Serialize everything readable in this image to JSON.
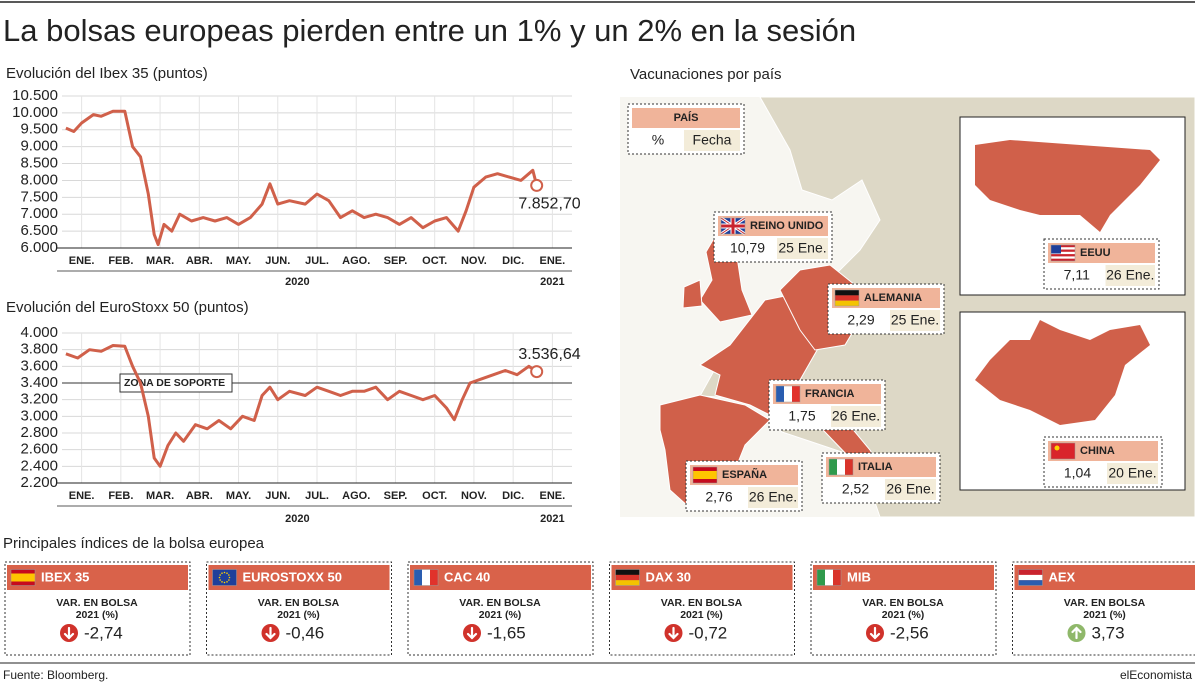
{
  "title": "La bolsas europeas pierden entre un 1% y un 2% en la sesión",
  "chart_data": [
    {
      "type": "line",
      "title": "Evolución del Ibex 35 (puntos)",
      "xlim": [
        0,
        13
      ],
      "xticks": [
        {
          "value": 0.5,
          "label": "ENE."
        },
        {
          "value": 1.5,
          "label": "FEB."
        },
        {
          "value": 2.5,
          "label": "MAR."
        },
        {
          "value": 3.5,
          "label": "ABR."
        },
        {
          "value": 4.5,
          "label": "MAY."
        },
        {
          "value": 5.5,
          "label": "JUN."
        },
        {
          "value": 6.5,
          "label": "JUL."
        },
        {
          "value": 7.5,
          "label": "AGO."
        },
        {
          "value": 8.5,
          "label": "SEP."
        },
        {
          "value": 9.5,
          "label": "OCT."
        },
        {
          "value": 10.5,
          "label": "NOV."
        },
        {
          "value": 11.5,
          "label": "DIC."
        },
        {
          "value": 12.5,
          "label": "ENE."
        }
      ],
      "x_groups": [
        {
          "value": 6,
          "label": "2020"
        },
        {
          "value": 12.5,
          "label": "2021"
        }
      ],
      "ylim": [
        6000,
        10500
      ],
      "yticks": [
        {
          "value": 6000,
          "label": "6.000"
        },
        {
          "value": 6500,
          "label": "6.500"
        },
        {
          "value": 7000,
          "label": "7.000"
        },
        {
          "value": 7500,
          "label": "7.500"
        },
        {
          "value": 8000,
          "label": "8.000"
        },
        {
          "value": 8500,
          "label": "8.500"
        },
        {
          "value": 9000,
          "label": "9.000"
        },
        {
          "value": 9500,
          "label": "9.500"
        },
        {
          "value": 10000,
          "label": "10.000"
        },
        {
          "value": 10500,
          "label": "10.500"
        }
      ],
      "grid": true,
      "series": [
        {
          "color": "#d0604a",
          "x": [
            0.1,
            0.3,
            0.5,
            0.8,
            1.0,
            1.3,
            1.6,
            1.8,
            2.0,
            2.2,
            2.35,
            2.45,
            2.6,
            2.8,
            3.0,
            3.3,
            3.6,
            3.9,
            4.2,
            4.5,
            4.8,
            5.1,
            5.3,
            5.5,
            5.8,
            6.2,
            6.5,
            6.8,
            7.1,
            7.4,
            7.7,
            8.0,
            8.3,
            8.6,
            8.9,
            9.2,
            9.5,
            9.8,
            10.1,
            10.3,
            10.5,
            10.8,
            11.1,
            11.4,
            11.7,
            12.0,
            12.1
          ],
          "values": [
            9550,
            9450,
            9700,
            9950,
            9900,
            10050,
            10050,
            9000,
            8700,
            7600,
            6400,
            6100,
            6700,
            6500,
            7000,
            6800,
            6900,
            6800,
            6900,
            6700,
            6900,
            7300,
            7900,
            7300,
            7400,
            7300,
            7600,
            7400,
            6900,
            7100,
            6900,
            7000,
            6900,
            6700,
            6900,
            6600,
            6800,
            6900,
            6500,
            7100,
            7800,
            8100,
            8200,
            8100,
            8000,
            8300,
            7852.7
          ],
          "value_labels": [
            null,
            null,
            null,
            null,
            null,
            null,
            null,
            null,
            null,
            null,
            null,
            null,
            null,
            null,
            null,
            null,
            null,
            null,
            null,
            null,
            null,
            null,
            null,
            null,
            null,
            null,
            null,
            null,
            null,
            null,
            null,
            null,
            null,
            null,
            null,
            null,
            null,
            null,
            null,
            null,
            null,
            null,
            null,
            null,
            null,
            null,
            "7.852,70"
          ]
        }
      ]
    },
    {
      "type": "line",
      "title": "Evolución del EuroStoxx 50 (puntos)",
      "xlim": [
        0,
        13
      ],
      "xticks": [
        {
          "value": 0.5,
          "label": "ENE."
        },
        {
          "value": 1.5,
          "label": "FEB."
        },
        {
          "value": 2.5,
          "label": "MAR."
        },
        {
          "value": 3.5,
          "label": "ABR."
        },
        {
          "value": 4.5,
          "label": "MAY."
        },
        {
          "value": 5.5,
          "label": "JUN."
        },
        {
          "value": 6.5,
          "label": "JUL."
        },
        {
          "value": 7.5,
          "label": "AGO."
        },
        {
          "value": 8.5,
          "label": "SEP."
        },
        {
          "value": 9.5,
          "label": "OCT."
        },
        {
          "value": 10.5,
          "label": "NOV."
        },
        {
          "value": 11.5,
          "label": "DIC."
        },
        {
          "value": 12.5,
          "label": "ENE."
        }
      ],
      "x_groups": [
        {
          "value": 6,
          "label": "2020"
        },
        {
          "value": 12.5,
          "label": "2021"
        }
      ],
      "ylim": [
        2200,
        4000
      ],
      "yticks": [
        {
          "value": 2200,
          "label": "2.200"
        },
        {
          "value": 2400,
          "label": "2.400"
        },
        {
          "value": 2600,
          "label": "2.600"
        },
        {
          "value": 2800,
          "label": "2.800"
        },
        {
          "value": 3000,
          "label": "3.000"
        },
        {
          "value": 3200,
          "label": "3.200"
        },
        {
          "value": 3400,
          "label": "3.400"
        },
        {
          "value": 3600,
          "label": "3.600"
        },
        {
          "value": 3800,
          "label": "3.800"
        },
        {
          "value": 4000,
          "label": "4.000"
        }
      ],
      "grid": true,
      "annotations": [
        {
          "text": "ZONA DE SOPORTE",
          "y": 3400
        }
      ],
      "series": [
        {
          "color": "#d0604a",
          "x": [
            0.1,
            0.4,
            0.7,
            1.0,
            1.3,
            1.6,
            1.8,
            2.0,
            2.2,
            2.35,
            2.5,
            2.7,
            2.9,
            3.1,
            3.4,
            3.7,
            4.0,
            4.3,
            4.6,
            4.9,
            5.1,
            5.3,
            5.5,
            5.8,
            6.2,
            6.5,
            6.8,
            7.1,
            7.4,
            7.7,
            8.0,
            8.3,
            8.6,
            8.9,
            9.2,
            9.5,
            9.8,
            10.0,
            10.2,
            10.4,
            10.7,
            11.0,
            11.3,
            11.6,
            11.9,
            12.1
          ],
          "values": [
            3750,
            3700,
            3800,
            3780,
            3850,
            3840,
            3600,
            3400,
            3000,
            2500,
            2400,
            2650,
            2800,
            2700,
            2900,
            2850,
            2950,
            2850,
            3000,
            2950,
            3250,
            3350,
            3200,
            3300,
            3250,
            3350,
            3300,
            3250,
            3300,
            3300,
            3350,
            3200,
            3300,
            3250,
            3200,
            3250,
            3100,
            2960,
            3200,
            3400,
            3450,
            3500,
            3550,
            3500,
            3600,
            3536.64
          ],
          "value_labels": [
            null,
            null,
            null,
            null,
            null,
            null,
            null,
            null,
            null,
            null,
            null,
            null,
            null,
            null,
            null,
            null,
            null,
            null,
            null,
            null,
            null,
            null,
            null,
            null,
            null,
            null,
            null,
            null,
            null,
            null,
            null,
            null,
            null,
            null,
            null,
            null,
            null,
            null,
            null,
            null,
            null,
            null,
            null,
            null,
            null,
            "3.536,64"
          ]
        }
      ]
    }
  ],
  "map": {
    "title": "Vacunaciones por país",
    "legend": {
      "header": "PAÍS",
      "value": "%",
      "date": "Fecha"
    },
    "countries": [
      {
        "name": "REINO UNIDO",
        "value": "10,79",
        "date": "25 Ene."
      },
      {
        "name": "ALEMANIA",
        "value": "2,29",
        "date": "25 Ene."
      },
      {
        "name": "FRANCIA",
        "value": "1,75",
        "date": "26 Ene."
      },
      {
        "name": "ESPAÑA",
        "value": "2,76",
        "date": "26 Ene."
      },
      {
        "name": "ITALIA",
        "value": "2,52",
        "date": "26 Ene."
      },
      {
        "name": "EEUU",
        "value": "7,11",
        "date": "26 Ene."
      },
      {
        "name": "CHINA",
        "value": "1,04",
        "date": "20 Ene."
      }
    ]
  },
  "indices": {
    "title": "Principales índices de la bolsa europea",
    "var_label": [
      "VAR. EN BOLSA",
      "2021 (%)"
    ],
    "items": [
      {
        "name": "IBEX 35",
        "value": -2.74,
        "label": "-2,74"
      },
      {
        "name": "EUROSTOXX 50",
        "value": -0.46,
        "label": "-0,46"
      },
      {
        "name": "CAC 40",
        "value": -1.65,
        "label": "-1,65"
      },
      {
        "name": "DAX 30",
        "value": -0.72,
        "label": "-0,72"
      },
      {
        "name": "MIB",
        "value": -2.56,
        "label": "-2,56"
      },
      {
        "name": "AEX",
        "value": 3.73,
        "label": "3,73"
      }
    ]
  },
  "footer": {
    "source": "Fuente: Bloomberg.",
    "brand": "elEconomista"
  }
}
